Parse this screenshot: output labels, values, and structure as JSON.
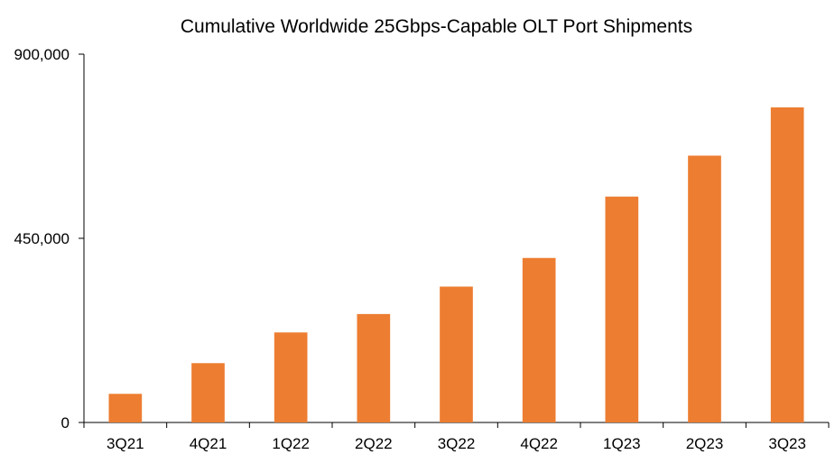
{
  "chart_data": {
    "type": "bar",
    "title": "Cumulative Worldwide 25Gbps-Capable OLT Port Shipments",
    "xlabel": "",
    "ylabel": "",
    "categories": [
      "3Q21",
      "4Q21",
      "1Q22",
      "2Q22",
      "3Q22",
      "4Q22",
      "1Q23",
      "2Q23",
      "3Q23"
    ],
    "series": [
      {
        "values": [
          70000,
          145000,
          220000,
          265000,
          332000,
          402000,
          552000,
          652000,
          770000
        ]
      }
    ],
    "ylim": [
      0,
      900000
    ],
    "yticks": [
      0,
      450000,
      900000
    ],
    "ytick_labels": [
      "0",
      "450,000",
      "900,000"
    ],
    "grid": false,
    "legend": "none",
    "bar_color": "#ED7D31",
    "axis_color": "#000000"
  }
}
